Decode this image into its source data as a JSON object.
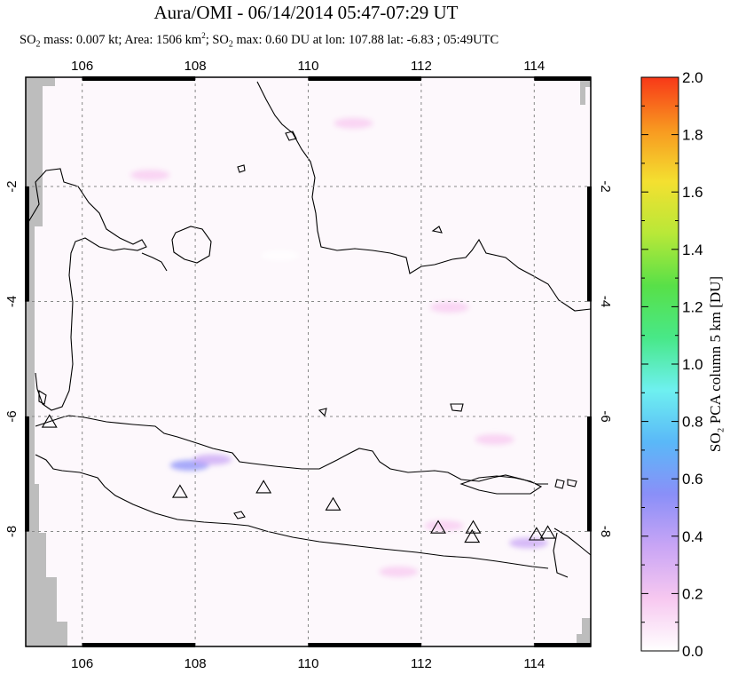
{
  "title": "Aura/OMI - 06/14/2014 05:47-07:29 UT",
  "subtitle": {
    "p1": "SO",
    "p1_sub": "2",
    "p2": " mass: 0.007 kt; Area: 1506 km",
    "p2_sup": "2",
    "p3": "; SO",
    "p3_sub": "2",
    "p4": " max: 0.60 DU at lon: 107.88 lat: -6.83 ; 05:49UTC"
  },
  "map": {
    "lon_range": [
      105,
      115
    ],
    "lat_range": [
      -10.0,
      -0.1
    ],
    "lon_ticks": [
      106,
      108,
      110,
      112,
      114
    ],
    "lat_ticks": [
      -2,
      -4,
      -6,
      -8
    ],
    "lon_tick_labels": [
      "106",
      "108",
      "110",
      "112",
      "114"
    ],
    "lat_tick_labels": [
      "-2",
      "-4",
      "-6",
      "-8"
    ],
    "volcanoes": [
      {
        "lon": 105.42,
        "lat": -6.1
      },
      {
        "lon": 107.73,
        "lat": -7.32
      },
      {
        "lon": 109.21,
        "lat": -7.24
      },
      {
        "lon": 110.44,
        "lat": -7.54
      },
      {
        "lon": 112.3,
        "lat": -7.94
      },
      {
        "lon": 112.92,
        "lat": -7.94
      },
      {
        "lon": 112.9,
        "lat": -8.1
      },
      {
        "lon": 114.04,
        "lat": -8.06
      },
      {
        "lon": 114.24,
        "lat": -8.03
      }
    ],
    "so2_patches": [
      {
        "lon": 107.9,
        "lat": -6.85,
        "value": 0.6
      },
      {
        "lon": 108.3,
        "lat": -6.75,
        "value": 0.35
      },
      {
        "lon": 113.9,
        "lat": -8.2,
        "value": 0.3
      },
      {
        "lon": 112.4,
        "lat": -7.9,
        "value": 0.25
      },
      {
        "lon": 111.6,
        "lat": -8.7,
        "value": 0.2
      },
      {
        "lon": 110.8,
        "lat": -0.9,
        "value": 0.12
      },
      {
        "lon": 112.5,
        "lat": -4.1,
        "value": 0.1
      },
      {
        "lon": 109.5,
        "lat": -3.2,
        "value": 0.08
      },
      {
        "lon": 107.2,
        "lat": -1.8,
        "value": 0.1
      },
      {
        "lon": 113.3,
        "lat": -6.4,
        "value": 0.1
      }
    ]
  },
  "colorbar": {
    "label": "SO₂ PCA column 5 km [DU]",
    "ticks": [
      "0.0",
      "0.2",
      "0.4",
      "0.6",
      "0.8",
      "1.0",
      "1.2",
      "1.4",
      "1.6",
      "1.8",
      "2.0"
    ],
    "min": 0.0,
    "max": 2.0,
    "colors": [
      "#ffffff",
      "#f7c8f0",
      "#c9a5f5",
      "#8a8ff8",
      "#5ab8f8",
      "#6ef0f0",
      "#48e888",
      "#58e048",
      "#b8e838",
      "#f4e030",
      "#f89820",
      "#f83818"
    ]
  }
}
